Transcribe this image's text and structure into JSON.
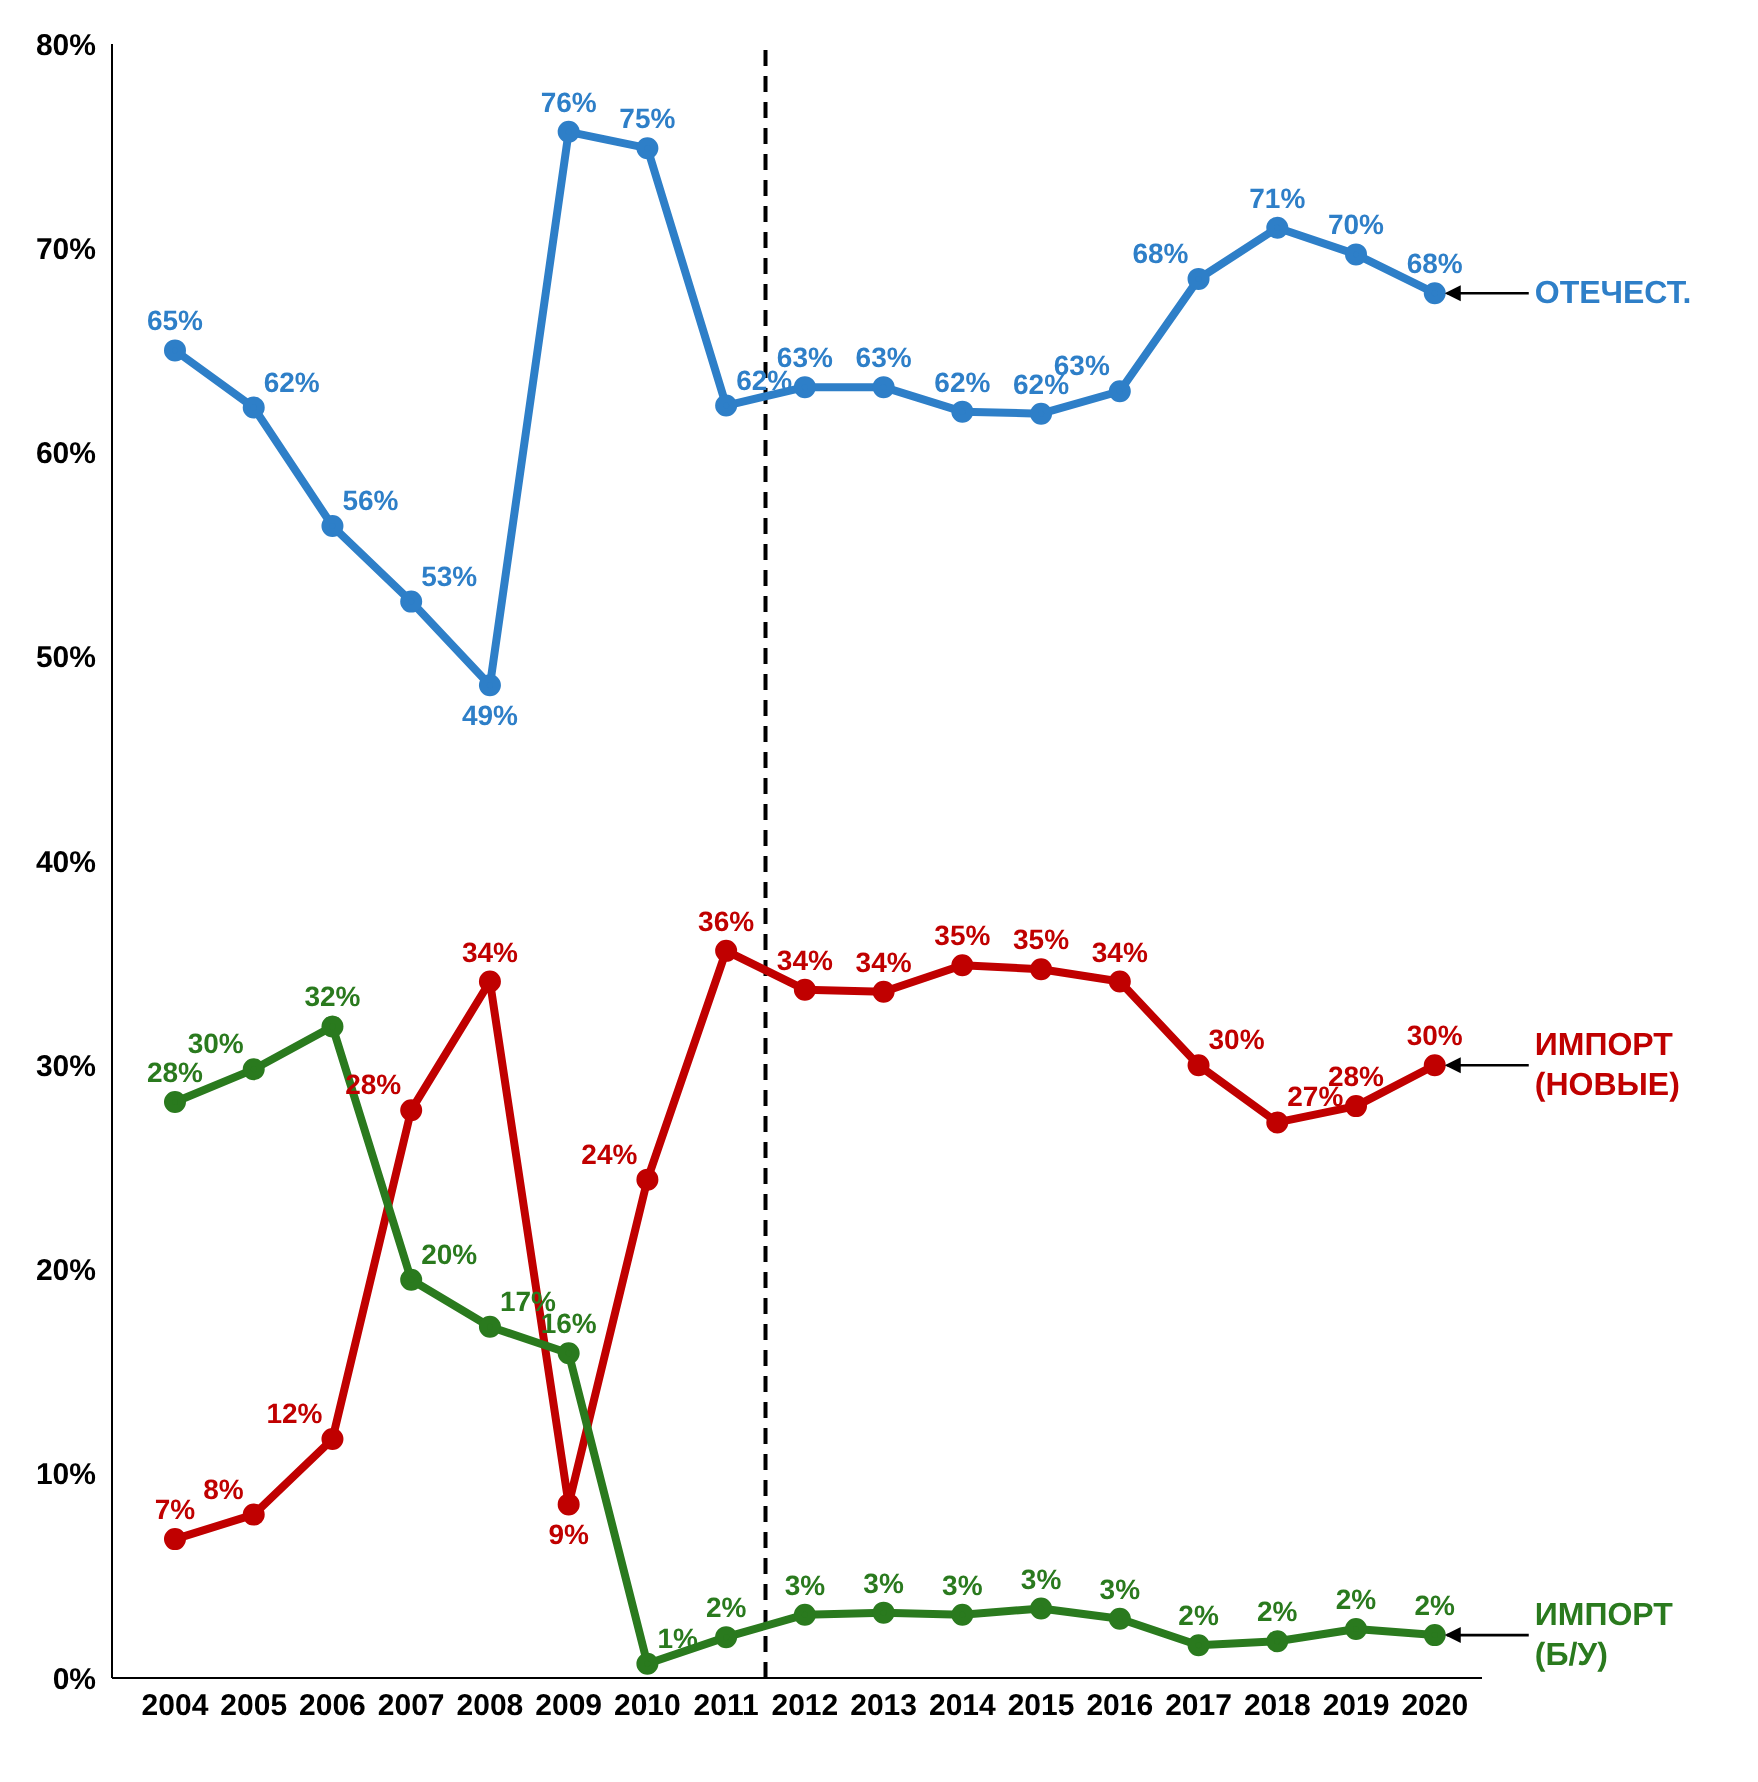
{
  "chart_data": {
    "type": "line",
    "x": [
      2004,
      2005,
      2006,
      2007,
      2008,
      2009,
      2010,
      2011,
      2012,
      2013,
      2014,
      2015,
      2016,
      2017,
      2018,
      2019,
      2020
    ],
    "xlim": [
      2003.2,
      2020.6
    ],
    "xticks": [
      2004,
      2005,
      2006,
      2007,
      2008,
      2009,
      2010,
      2011,
      2012,
      2013,
      2014,
      2015,
      2016,
      2017,
      2018,
      2019,
      2020
    ],
    "ylim": [
      0,
      80
    ],
    "yticks": [
      {
        "value": 0,
        "label": "0%"
      },
      {
        "value": 10,
        "label": "10%"
      },
      {
        "value": 20,
        "label": "20%"
      },
      {
        "value": 30,
        "label": "30%"
      },
      {
        "value": 40,
        "label": "40%"
      },
      {
        "value": 50,
        "label": "50%"
      },
      {
        "value": 60,
        "label": "60%"
      },
      {
        "value": 70,
        "label": "70%"
      },
      {
        "value": 80,
        "label": "80%"
      }
    ],
    "marker": "circle",
    "line_style": "solid",
    "ref_lines": [
      {
        "axis": "x",
        "value": 2011.5,
        "color": "#000000",
        "line_style": "dashed"
      }
    ],
    "series": [
      {
        "name": "ОТЕЧЕСТ.",
        "color": "#2e7fc8",
        "values": [
          65,
          62.2,
          56.4,
          52.7,
          48.6,
          75.7,
          74.9,
          62.3,
          63.2,
          63.2,
          62,
          61.9,
          63,
          68.5,
          71,
          69.7,
          67.8
        ],
        "value_labels": [
          "65%",
          "62%",
          "56%",
          "53%",
          "49%",
          "76%",
          "75%",
          "62%",
          "63%",
          "63%",
          "62%",
          "62%",
          "63%",
          "68%",
          "71%",
          "70%",
          "68%"
        ]
      },
      {
        "name": "ИМПОРТ (НОВЫЕ)",
        "color": "#c00000",
        "values": [
          6.8,
          8,
          11.7,
          27.8,
          34.1,
          8.5,
          24.4,
          35.6,
          33.7,
          33.6,
          34.9,
          34.7,
          34.1,
          30,
          27.2,
          28,
          30
        ],
        "value_labels": [
          "7%",
          "8%",
          "12%",
          "28%",
          "34%",
          "9%",
          "24%",
          "36%",
          "34%",
          "34%",
          "35%",
          "35%",
          "34%",
          "30%",
          "27%",
          "28%",
          "30%"
        ]
      },
      {
        "name": "ИМПОРТ (Б/У)",
        "color": "#2a7a1e",
        "values": [
          28.2,
          29.8,
          31.9,
          19.5,
          17.2,
          15.9,
          0.7,
          2,
          3.1,
          3.2,
          3.1,
          3.4,
          2.9,
          1.6,
          1.8,
          2.4,
          2.1
        ],
        "value_labels": [
          "28%",
          "30%",
          "32%",
          "20%",
          "17%",
          "16%",
          "1%",
          "2%",
          "3%",
          "3%",
          "3%",
          "3%",
          "3%",
          "2%",
          "2%",
          "2%",
          "2%"
        ]
      }
    ]
  }
}
